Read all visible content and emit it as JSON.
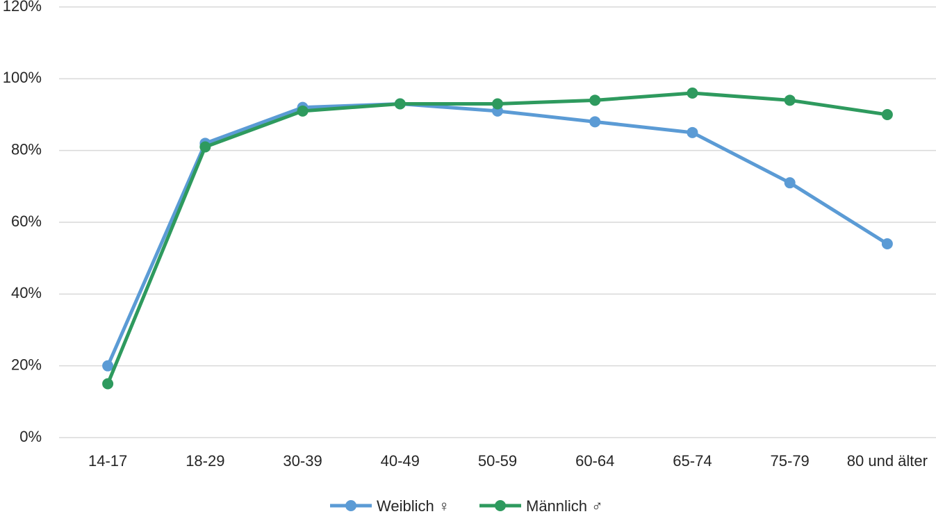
{
  "chart_data": {
    "type": "line",
    "categories": [
      "14-17",
      "18-29",
      "30-39",
      "40-49",
      "50-59",
      "60-64",
      "65-74",
      "75-79",
      "80 und älter"
    ],
    "series": [
      {
        "name": "Weiblich ♀",
        "color": "#5b9bd5",
        "values": [
          20,
          82,
          92,
          93,
          91,
          88,
          85,
          71,
          54
        ]
      },
      {
        "name": "Männlich ♂",
        "color": "#2e9a5e",
        "values": [
          15,
          81,
          91,
          93,
          93,
          94,
          96,
          94,
          90
        ]
      }
    ],
    "ylim": [
      0,
      120
    ],
    "yticks": [
      {
        "value": 0,
        "label": "0%"
      },
      {
        "value": 20,
        "label": "20%"
      },
      {
        "value": 40,
        "label": "40%"
      },
      {
        "value": 60,
        "label": "60%"
      },
      {
        "value": 80,
        "label": "80%"
      },
      {
        "value": 100,
        "label": "100%"
      },
      {
        "value": 120,
        "label": "120%"
      }
    ],
    "grid": true,
    "legend": "bottom"
  }
}
